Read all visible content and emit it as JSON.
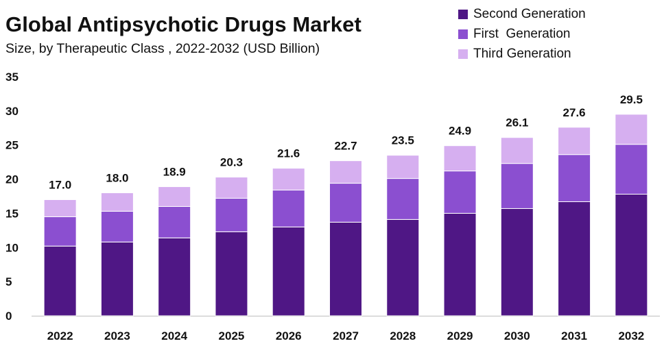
{
  "chart_data": {
    "type": "bar",
    "stacked": true,
    "title": "Global Antipsychotic Drugs Market",
    "subtitle": "Size, by Therapeutic Class  , 2022-2032 (USD Billion)",
    "xlabel": "",
    "ylabel": "",
    "ylim": [
      0,
      35
    ],
    "yticks": [
      0,
      5,
      10,
      15,
      20,
      25,
      30,
      35
    ],
    "legend_position": "top-right",
    "categories": [
      "2022",
      "2023",
      "2024",
      "2025",
      "2026",
      "2027",
      "2028",
      "2029",
      "2030",
      "2031",
      "2032"
    ],
    "series": [
      {
        "name": "Second Generation",
        "color": "#4f1785",
        "values": [
          10.2,
          10.8,
          11.4,
          12.3,
          13.0,
          13.7,
          14.1,
          15.0,
          15.7,
          16.7,
          17.8
        ]
      },
      {
        "name": "First  Generation",
        "color": "#8b4fd0",
        "values": [
          4.3,
          4.5,
          4.6,
          4.9,
          5.4,
          5.7,
          6.0,
          6.2,
          6.6,
          6.9,
          7.3
        ]
      },
      {
        "name": "Third Generation",
        "color": "#d6aff0",
        "values": [
          2.5,
          2.7,
          2.9,
          3.1,
          3.2,
          3.3,
          3.4,
          3.7,
          3.8,
          4.0,
          4.4
        ]
      }
    ],
    "totals": [
      "17.0",
      "18.0",
      "18.9",
      "20.3",
      "21.6",
      "22.7",
      "23.5",
      "24.9",
      "26.1",
      "27.6",
      "29.5"
    ]
  }
}
